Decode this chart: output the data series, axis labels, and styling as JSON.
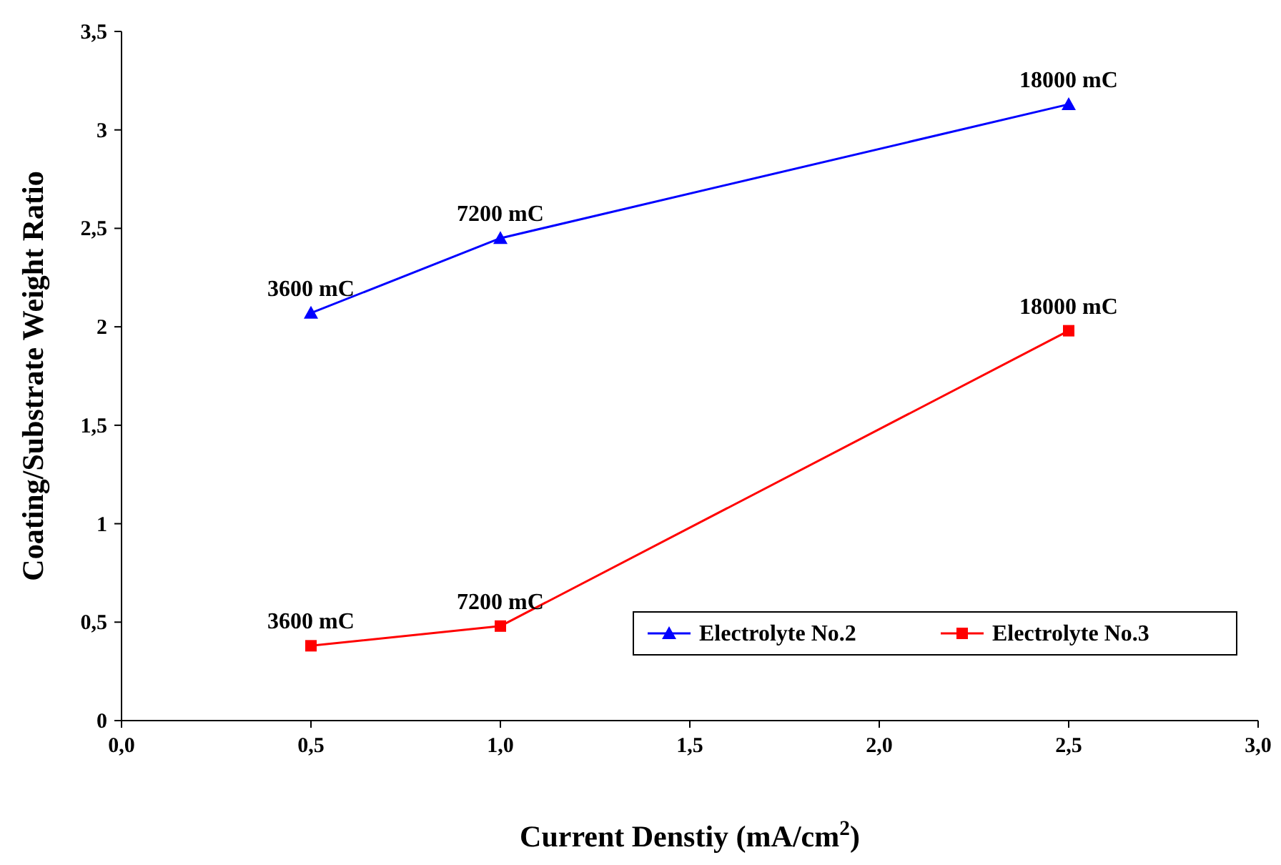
{
  "chart_data": {
    "type": "line",
    "xlabel": "Current Denstiy (mA/cm$^{2}$)",
    "ylabel": "Coating/Substrate Weight Ratio",
    "xlim": [
      0,
      3
    ],
    "xticks": [
      {
        "value": 0,
        "label": "0,0"
      },
      {
        "value": 0.5,
        "label": "0,5"
      },
      {
        "value": 1,
        "label": "1,0"
      },
      {
        "value": 1.5,
        "label": "1,5"
      },
      {
        "value": 2,
        "label": "2,0"
      },
      {
        "value": 2.5,
        "label": "2,5"
      },
      {
        "value": 3,
        "label": "3,0"
      }
    ],
    "ylim": [
      0,
      3.5
    ],
    "yticks": [
      0,
      {
        "value": 0.5,
        "label": "0,5"
      },
      1,
      {
        "value": 1.5,
        "label": "1,5"
      },
      2,
      {
        "value": 2.5,
        "label": "2,5"
      },
      3,
      {
        "value": 3.5,
        "label": "3,5"
      }
    ],
    "grid": false,
    "legend": "bottom right",
    "series": [
      {
        "name": "Electrolyte No.2",
        "color": "#0000ff",
        "marker": "triangle",
        "x": [
          0.5,
          1,
          2.5
        ],
        "values": [
          2.07,
          2.45,
          3.13
        ]
      },
      {
        "name": "Electrolyte No.3",
        "color": "#ff0000",
        "marker": "square",
        "x": [
          0.5,
          1,
          2.5
        ],
        "values": [
          0.38,
          0.48,
          1.98
        ]
      }
    ],
    "annotations": [
      {
        "text": "3600 mC",
        "x": 0.5,
        "y": 2.07
      },
      {
        "text": "7200 mC",
        "x": 1,
        "y": 2.45
      },
      {
        "text": "18000 mC",
        "x": 2.5,
        "y": 3.13
      },
      {
        "text": "3600 mC",
        "x": 0.5,
        "y": 0.38
      },
      {
        "text": "7200 mC",
        "x": 1,
        "y": 0.48
      },
      {
        "text": "18000 mC",
        "x": 2.5,
        "y": 1.98
      }
    ]
  }
}
